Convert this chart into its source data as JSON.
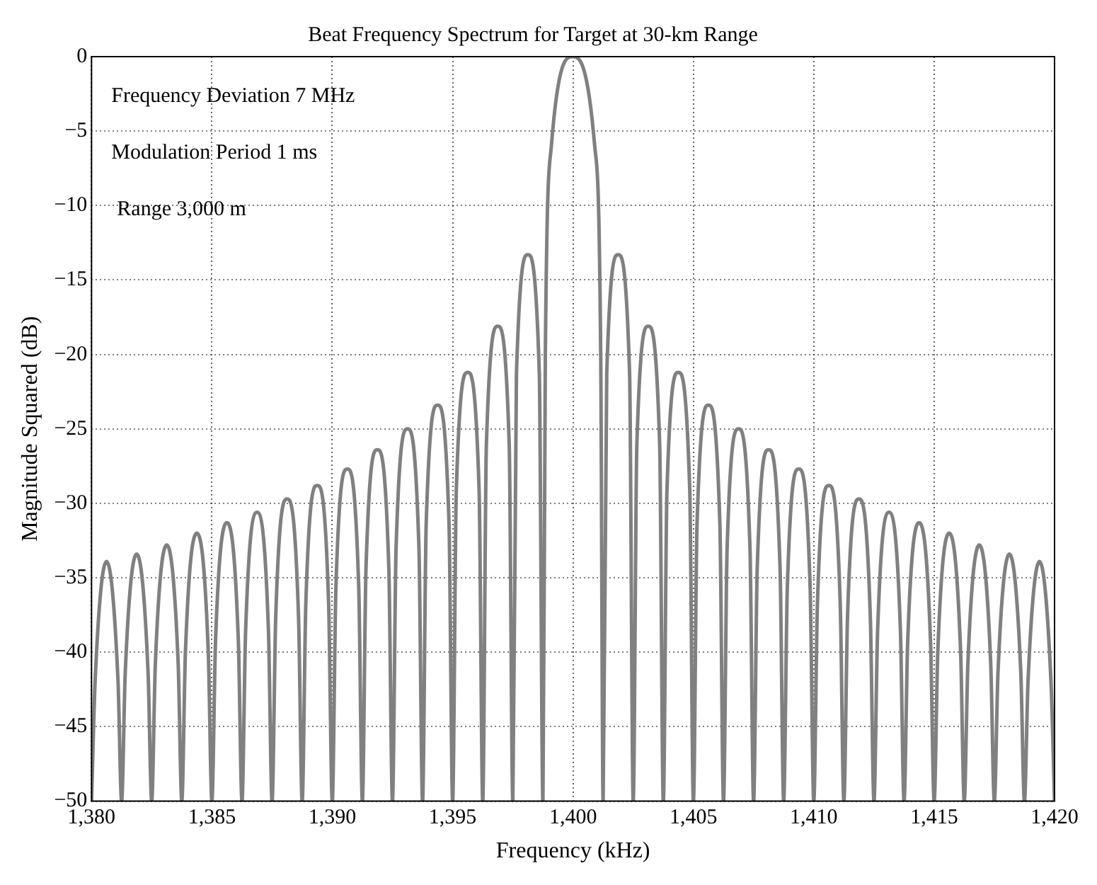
{
  "chart_data": {
    "type": "line",
    "title": "Beat Frequency Spectrum for Target at 30-km Range",
    "xlabel": "Frequency (kHz)",
    "ylabel": "Magnitude Squared (dB)",
    "annotations": [
      "Frequency Deviation 7 MHz",
      "Modulation Period 1 ms",
      "Range 3,000 m"
    ],
    "xlim": [
      1380,
      1420
    ],
    "xticks": [
      {
        "value": 1380,
        "label": "1,380"
      },
      {
        "value": 1385,
        "label": "1,385"
      },
      {
        "value": 1390,
        "label": "1,390"
      },
      {
        "value": 1395,
        "label": "1,395"
      },
      {
        "value": 1400,
        "label": "1,400"
      },
      {
        "value": 1405,
        "label": "1,405"
      },
      {
        "value": 1410,
        "label": "1,410"
      },
      {
        "value": 1415,
        "label": "1,415"
      },
      {
        "value": 1420,
        "label": "1,420"
      }
    ],
    "ylim": [
      -50,
      0
    ],
    "yticks": [
      {
        "value": -50,
        "label": "−50"
      },
      {
        "value": -45,
        "label": "−45"
      },
      {
        "value": -40,
        "label": "−40"
      },
      {
        "value": -35,
        "label": "−35"
      },
      {
        "value": -30,
        "label": "−30"
      },
      {
        "value": -25,
        "label": "−25"
      },
      {
        "value": -20,
        "label": "−20"
      },
      {
        "value": -15,
        "label": "−15"
      },
      {
        "value": -10,
        "label": "−10"
      },
      {
        "value": -5,
        "label": "−5"
      },
      {
        "value": 0,
        "label": "0"
      }
    ],
    "grid": true,
    "line_style": "solid",
    "series": [
      {
        "color": "#808080",
        "x": [
          1380,
          1380.15,
          1380.625,
          1381.1,
          1381.25,
          1381.4,
          1381.875,
          1382.35,
          1382.5,
          1382.65,
          1383.125,
          1383.6,
          1383.75,
          1383.9,
          1384.375,
          1384.85,
          1385,
          1385.15,
          1385.625,
          1386.1,
          1386.25,
          1386.4,
          1386.875,
          1387.35,
          1387.5,
          1387.65,
          1388.125,
          1388.6,
          1388.75,
          1388.9,
          1389.375,
          1389.85,
          1390,
          1390.15,
          1390.625,
          1391.1,
          1391.25,
          1391.4,
          1391.875,
          1392.35,
          1392.5,
          1392.65,
          1393.125,
          1393.6,
          1393.75,
          1393.9,
          1394.375,
          1394.85,
          1395,
          1395.15,
          1395.625,
          1396.1,
          1396.25,
          1396.4,
          1396.875,
          1397.35,
          1397.5,
          1397.65,
          1398.125,
          1398.6,
          1398.75,
          1398.85,
          1399.1,
          1400,
          1400.9,
          1401.15,
          1401.25,
          1401.4,
          1401.875,
          1402.35,
          1402.5,
          1402.65,
          1403.125,
          1403.6,
          1403.75,
          1403.9,
          1404.375,
          1404.85,
          1405,
          1405.15,
          1405.625,
          1406.1,
          1406.25,
          1406.4,
          1406.875,
          1407.35,
          1407.5,
          1407.65,
          1408.125,
          1408.6,
          1408.75,
          1408.9,
          1409.375,
          1409.85,
          1410,
          1410.15,
          1410.625,
          1411.1,
          1411.25,
          1411.4,
          1411.875,
          1412.35,
          1412.5,
          1412.65,
          1413.125,
          1413.6,
          1413.75,
          1413.9,
          1414.375,
          1414.85,
          1415,
          1415.15,
          1415.625,
          1416.1,
          1416.25,
          1416.4,
          1416.875,
          1417.35,
          1417.5,
          1417.65,
          1418.125,
          1418.6,
          1418.75,
          1418.9,
          1419.375,
          1419.85,
          1420
        ],
        "values": [
          -50,
          -41.9,
          -33.9,
          -41.9,
          -50,
          -41.4,
          -33.4,
          -41.4,
          -50,
          -40.8,
          -32.8,
          -40.8,
          -50,
          -40,
          -32,
          -40,
          -50,
          -39.3,
          -31.3,
          -39.3,
          -50,
          -38.6,
          -30.6,
          -38.6,
          -50,
          -37.7,
          -29.7,
          -37.7,
          -50,
          -36.8,
          -28.8,
          -36.8,
          -50,
          -35.7,
          -27.7,
          -35.7,
          -50,
          -34.4,
          -26.4,
          -34.4,
          -50,
          -33,
          -25,
          -33,
          -50,
          -31.4,
          -23.4,
          -31.4,
          -50,
          -29.2,
          -21.2,
          -29.2,
          -50,
          -26.1,
          -18.1,
          -26.1,
          -50,
          -21.3,
          -13.3,
          -21.3,
          -50,
          -20,
          -6,
          0,
          -6,
          -20,
          -50,
          -21.3,
          -13.3,
          -21.3,
          -50,
          -26.1,
          -18.1,
          -26.1,
          -50,
          -29.2,
          -21.2,
          -29.2,
          -50,
          -31.4,
          -23.4,
          -31.4,
          -50,
          -33,
          -25,
          -33,
          -50,
          -34.4,
          -26.4,
          -34.4,
          -50,
          -35.7,
          -27.7,
          -35.7,
          -50,
          -36.8,
          -28.8,
          -36.8,
          -50,
          -37.7,
          -29.7,
          -37.7,
          -50,
          -38.6,
          -30.6,
          -38.6,
          -50,
          -39.3,
          -31.3,
          -39.3,
          -50,
          -40,
          -32,
          -40,
          -50,
          -40.8,
          -32.8,
          -40.8,
          -50,
          -41.4,
          -33.4,
          -41.4,
          -50,
          -41.9,
          -33.9,
          -41.9,
          -50
        ]
      }
    ]
  }
}
